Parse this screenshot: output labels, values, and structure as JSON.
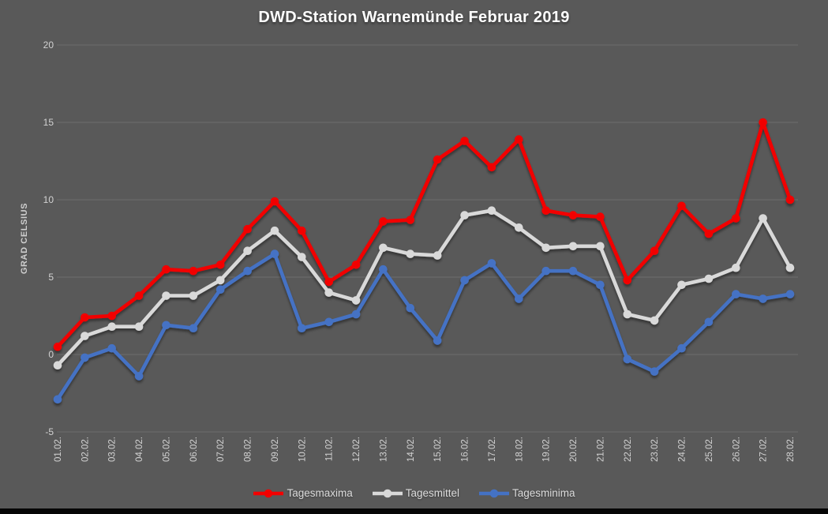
{
  "window": {
    "background_color": "#595959",
    "bottom_bar_color": "#060606"
  },
  "chart_data": {
    "type": "line",
    "title": "DWD-Station Warnemünde Februar 2019",
    "xlabel": "",
    "ylabel": "GRAD CELSIUS",
    "ylim": [
      -5,
      20
    ],
    "yticks": [
      20,
      15,
      10,
      5,
      0,
      -5
    ],
    "grid": true,
    "legend_position": "bottom",
    "grid_color": "#6d6d6d",
    "tick_label_color": "#d2d2d2",
    "categories": [
      "01.02.",
      "02.02.",
      "03.02.",
      "04.02.",
      "05.02.",
      "06.02.",
      "07.02.",
      "08.02.",
      "09.02.",
      "10.02.",
      "11.02.",
      "12.02.",
      "13.02.",
      "14.02.",
      "15.02.",
      "16.02.",
      "17.02.",
      "18.02.",
      "19.02.",
      "20.02.",
      "21.02.",
      "22.02.",
      "23.02.",
      "24.02.",
      "25.02.",
      "26.02.",
      "27.02.",
      "28.02."
    ],
    "series": [
      {
        "name": "Tagesmaxima",
        "color": "#f20000",
        "values": [
          0.5,
          2.4,
          2.5,
          3.8,
          5.5,
          5.4,
          5.8,
          8.1,
          9.9,
          8.0,
          4.7,
          5.8,
          8.6,
          8.7,
          12.6,
          13.8,
          12.1,
          13.9,
          9.3,
          9.0,
          8.9,
          4.8,
          6.7,
          9.6,
          7.8,
          8.8,
          15.0,
          10.0
        ]
      },
      {
        "name": "Tagesmittel",
        "color": "#d9d9d9",
        "values": [
          -0.7,
          1.2,
          1.8,
          1.8,
          3.8,
          3.8,
          4.8,
          6.7,
          8.0,
          6.3,
          4.0,
          3.5,
          6.9,
          6.5,
          6.4,
          9.0,
          9.3,
          8.2,
          6.9,
          7.0,
          7.0,
          2.6,
          2.2,
          4.5,
          4.9,
          5.6,
          8.8,
          5.6
        ]
      },
      {
        "name": "Tagesminima",
        "color": "#4472c4",
        "values": [
          -2.9,
          -0.2,
          0.4,
          -1.4,
          1.9,
          1.7,
          4.2,
          5.4,
          6.5,
          1.7,
          2.1,
          2.6,
          5.5,
          3.0,
          0.9,
          4.8,
          5.9,
          3.6,
          5.4,
          5.4,
          4.5,
          -0.3,
          -1.1,
          0.4,
          2.1,
          3.9,
          3.6,
          3.9
        ]
      }
    ]
  }
}
